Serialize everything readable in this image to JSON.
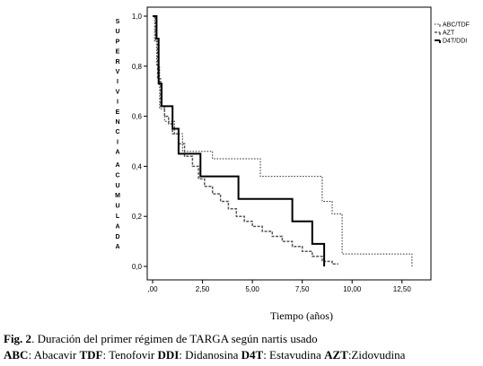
{
  "chart_data": {
    "type": "line",
    "subtype": "kaplan-meier-step",
    "title": "",
    "xlabel": "Tiempo (años)",
    "ylabel": "SUPERVIVIENCIA ACUMULADA",
    "ylabel_letters_top": [
      "S",
      "U",
      "P",
      "E",
      "R",
      "V",
      "I",
      "V",
      "I",
      "E",
      "N",
      "C",
      "I",
      "A"
    ],
    "ylabel_letters_bottom": [
      "A",
      "C",
      "U",
      "M",
      "U",
      "L",
      "A",
      "D",
      "A"
    ],
    "xlim": [
      0,
      13.5
    ],
    "ylim": [
      0,
      1.0
    ],
    "x_ticks": [
      0,
      2.5,
      5,
      7.5,
      10,
      12.5
    ],
    "x_tick_labels": [
      ",00",
      "2,50",
      "5,00",
      "7,50",
      "10,00",
      "12,50"
    ],
    "y_ticks": [
      0,
      0.2,
      0.4,
      0.6,
      0.8,
      1.0
    ],
    "y_tick_labels": [
      "0,0",
      "0,2",
      "0,4",
      "0,6",
      "0,8",
      "1,0"
    ],
    "grid": false,
    "legend_position": "top-right",
    "series": [
      {
        "name": "ABC/TDF",
        "style": "dotted",
        "color": "#333333",
        "x": [
          0,
          0.1,
          0.2,
          0.35,
          0.6,
          1.1,
          1.5,
          2.3,
          3.0,
          5.0,
          5.4,
          6.8,
          8.5,
          9.0,
          9.5,
          12.5,
          13.0
        ],
        "y": [
          1.0,
          0.9,
          0.8,
          0.63,
          0.58,
          0.53,
          0.46,
          0.46,
          0.43,
          0.43,
          0.36,
          0.36,
          0.26,
          0.21,
          0.05,
          0.05,
          0.0
        ]
      },
      {
        "name": "AZT",
        "style": "dashed",
        "color": "#555555",
        "x": [
          0,
          0.15,
          0.25,
          0.4,
          0.6,
          0.8,
          1.0,
          1.3,
          1.6,
          2.0,
          2.3,
          2.6,
          3.0,
          3.4,
          3.8,
          4.2,
          4.6,
          5.0,
          5.5,
          6.0,
          6.5,
          7.0,
          7.5,
          8.0,
          8.5,
          9.0,
          9.3
        ],
        "y": [
          1.0,
          0.9,
          0.75,
          0.64,
          0.6,
          0.57,
          0.53,
          0.49,
          0.44,
          0.4,
          0.35,
          0.32,
          0.29,
          0.26,
          0.23,
          0.2,
          0.18,
          0.16,
          0.14,
          0.12,
          0.1,
          0.08,
          0.06,
          0.04,
          0.02,
          0.01,
          0.01
        ]
      },
      {
        "name": "D4T/DDI",
        "style": "solid",
        "color": "#000000",
        "x": [
          0,
          0.2,
          0.3,
          0.45,
          1.0,
          1.3,
          2.4,
          4.3,
          7.0,
          8.0,
          8.6
        ],
        "y": [
          1.0,
          0.91,
          0.73,
          0.64,
          0.55,
          0.45,
          0.36,
          0.27,
          0.18,
          0.09,
          0.0
        ]
      }
    ]
  },
  "caption": {
    "line1_label": "Fig. 2",
    "line1_text": ". Duración del primer régimen de TARGA según nartis usado",
    "line2": [
      {
        "abbr": "ABC",
        "text": ": Abacavir "
      },
      {
        "abbr": "TDF",
        "text": ": Tenofovir "
      },
      {
        "abbr": "DDI",
        "text": ": Didanosina "
      },
      {
        "abbr": "D4T",
        "text": ": Estavudina "
      },
      {
        "abbr": "AZT",
        "text": ":Zidovudina"
      }
    ]
  }
}
